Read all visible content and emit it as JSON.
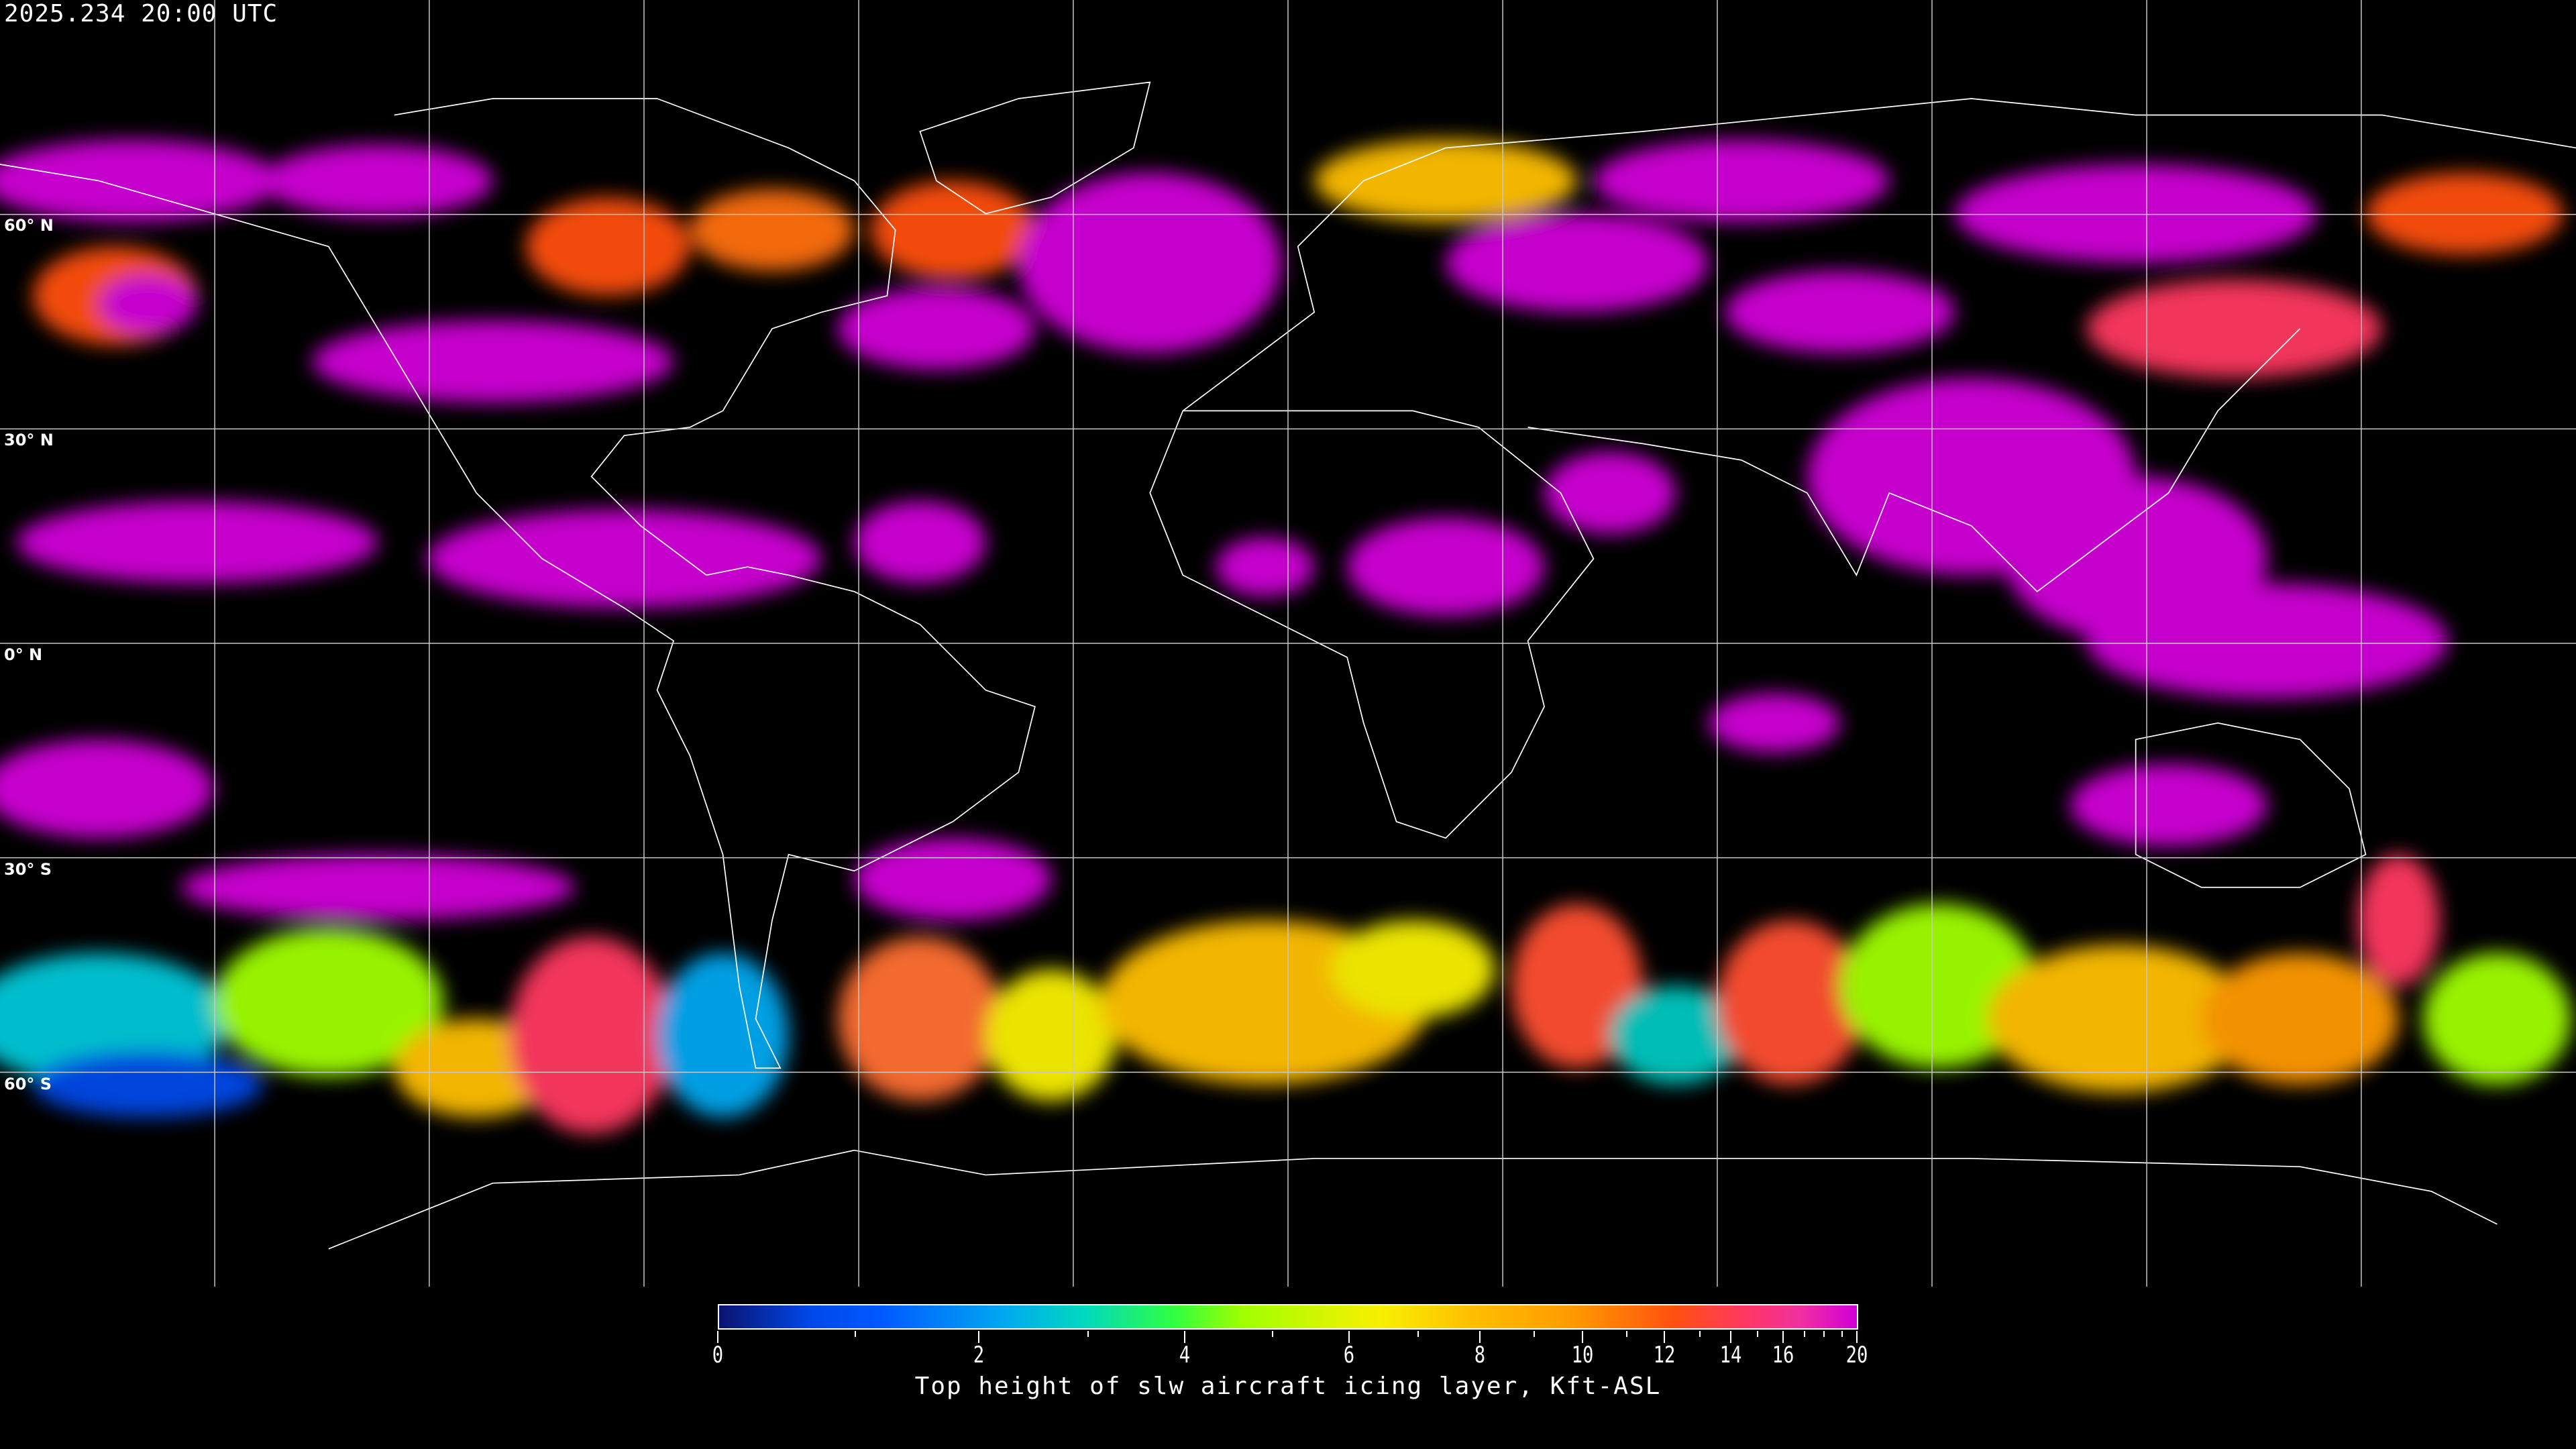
{
  "timestamp": "2025.234 20:00 UTC",
  "map": {
    "projection": "equirectangular",
    "grid_spacing_deg": 30,
    "lat_labels": [
      "60° N",
      "30° N",
      "0° N",
      "30° S",
      "60° S"
    ],
    "coastline_color": "#ffffff",
    "grid_color": "#c8c8c8"
  },
  "colorbar": {
    "title": "Top height of slw aircraft icing layer, Kft-ASL",
    "min": 0,
    "max": 20,
    "tick_labels": [
      "0",
      "2",
      "4",
      "6",
      "8",
      "10",
      "12",
      "14",
      "16",
      "20"
    ],
    "minor_ticks": [
      1,
      3,
      5,
      7,
      9,
      11,
      13,
      15,
      17,
      18,
      19
    ],
    "colors": [
      "#0a1370",
      "#0058ff",
      "#00a8f0",
      "#30ff40",
      "#a0ff00",
      "#f8f000",
      "#ffc000",
      "#ff9a00",
      "#ff5010",
      "#ff3860",
      "#d000d8"
    ]
  }
}
